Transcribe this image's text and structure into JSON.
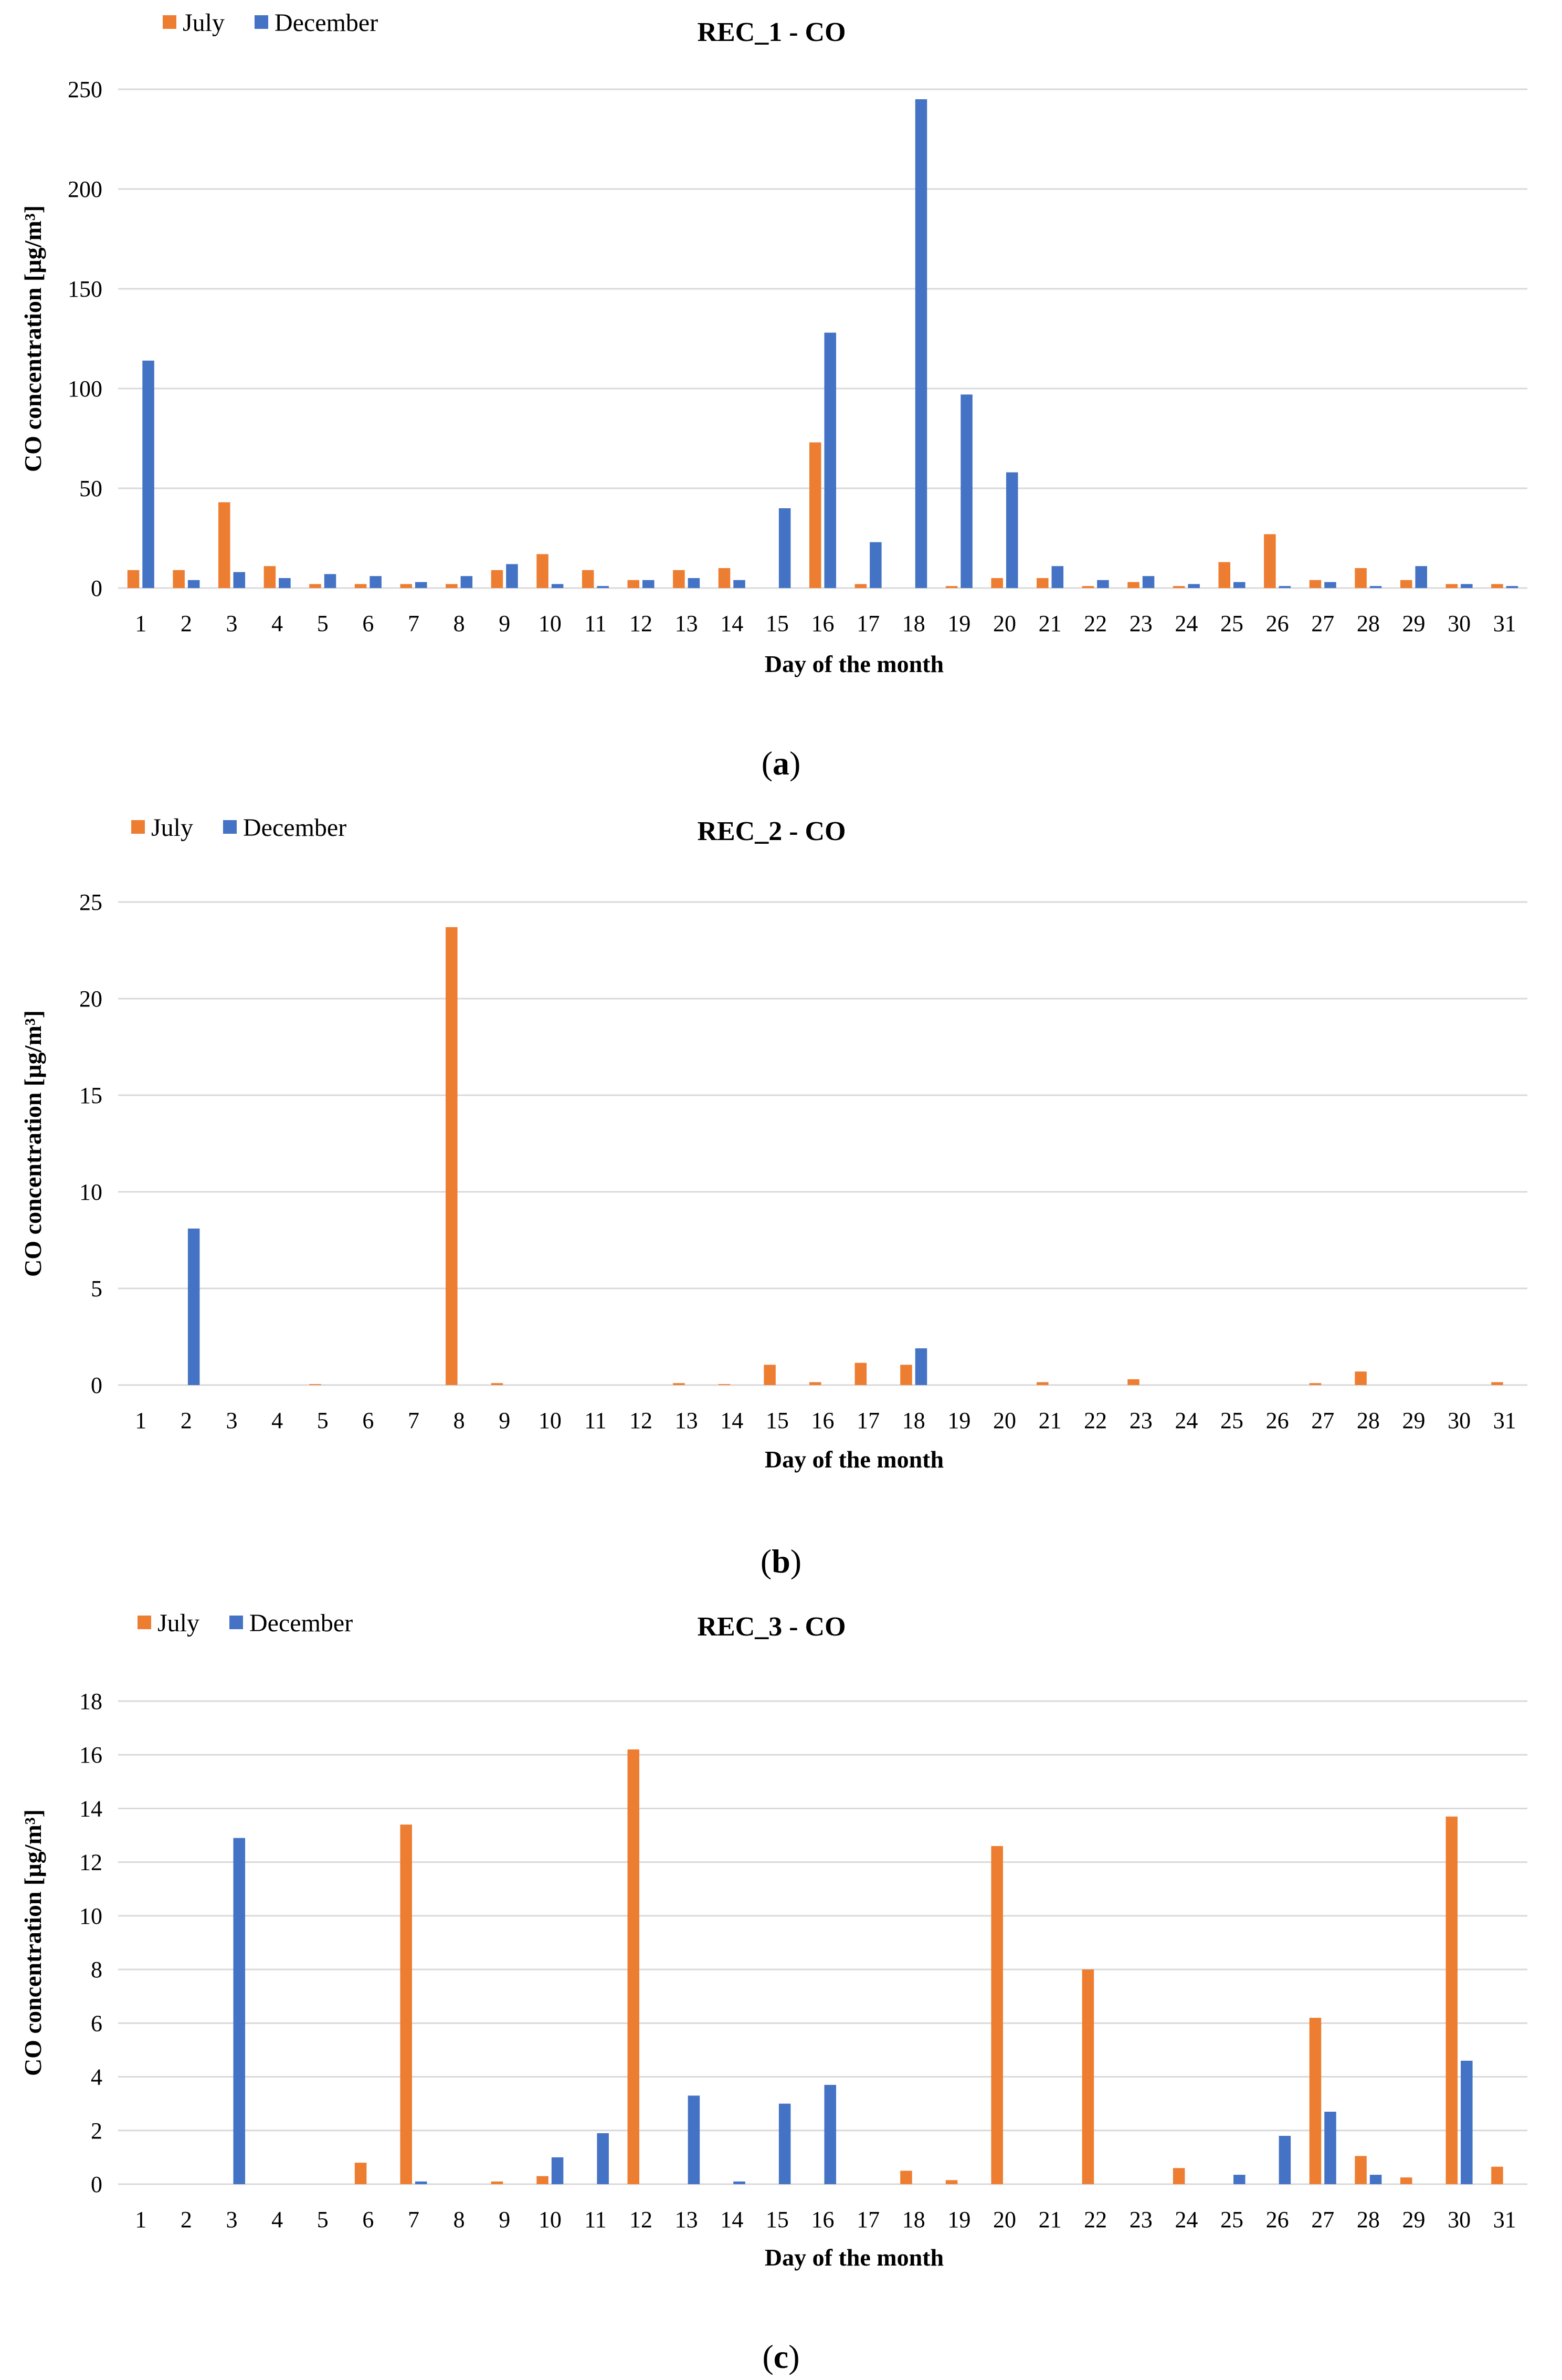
{
  "colors": {
    "july": "#ED7D31",
    "december": "#4472C4"
  },
  "chart_data": [
    {
      "type": "bar",
      "title": "REC_1 - CO",
      "xlabel": "Day of the month",
      "ylabel": "CO concentration [µg/m³]",
      "ylim": [
        0,
        250
      ],
      "yticks": [
        0,
        50,
        100,
        150,
        200,
        250
      ],
      "categories": [
        "1",
        "2",
        "3",
        "4",
        "5",
        "6",
        "7",
        "8",
        "9",
        "10",
        "11",
        "12",
        "13",
        "14",
        "15",
        "16",
        "17",
        "18",
        "19",
        "20",
        "21",
        "22",
        "23",
        "24",
        "25",
        "26",
        "27",
        "28",
        "29",
        "30",
        "31"
      ],
      "series": [
        {
          "name": "July",
          "values": [
            9,
            9,
            43,
            11,
            2,
            2,
            2,
            2,
            9,
            17,
            9,
            4,
            9,
            10,
            0,
            73,
            2,
            0,
            1,
            5,
            5,
            1,
            3,
            1,
            13,
            27,
            4,
            10,
            4,
            2,
            2
          ]
        },
        {
          "name": "December",
          "values": [
            114,
            4,
            8,
            5,
            7,
            6,
            3,
            6,
            12,
            2,
            1,
            4,
            5,
            4,
            40,
            128,
            23,
            245,
            97,
            58,
            11,
            4,
            6,
            2,
            3,
            1,
            3,
            1,
            11,
            2,
            1
          ]
        }
      ],
      "caption": "a"
    },
    {
      "type": "bar",
      "title": "REC_2 - CO",
      "xlabel": "Day of the month",
      "ylabel": "CO concentration [µg/m³]",
      "ylim": [
        0,
        25
      ],
      "yticks": [
        0,
        5,
        10,
        15,
        20,
        25
      ],
      "categories": [
        "1",
        "2",
        "3",
        "4",
        "5",
        "6",
        "7",
        "8",
        "9",
        "10",
        "11",
        "12",
        "13",
        "14",
        "15",
        "16",
        "17",
        "18",
        "19",
        "20",
        "21",
        "22",
        "23",
        "24",
        "25",
        "26",
        "27",
        "28",
        "29",
        "30",
        "31"
      ],
      "series": [
        {
          "name": "July",
          "values": [
            0,
            0,
            0,
            0,
            0.05,
            0,
            0,
            23.7,
            0.1,
            0,
            0,
            0,
            0.1,
            0.05,
            1.05,
            0.15,
            1.15,
            1.05,
            0,
            0,
            0.15,
            0,
            0.3,
            0,
            0,
            0,
            0.1,
            0.7,
            0,
            0,
            0.15
          ]
        },
        {
          "name": "December",
          "values": [
            0,
            8.1,
            0,
            0,
            0,
            0,
            0,
            0,
            0,
            0,
            0,
            0,
            0,
            0,
            0,
            0,
            0,
            1.9,
            0,
            0,
            0,
            0,
            0,
            0,
            0,
            0,
            0,
            0,
            0,
            0,
            0
          ]
        }
      ],
      "caption": "b"
    },
    {
      "type": "bar",
      "title": "REC_3 - CO",
      "xlabel": "Day of the month",
      "ylabel": "CO concentration [µg/m³]",
      "ylim": [
        0,
        18
      ],
      "yticks": [
        0,
        2,
        4,
        6,
        8,
        10,
        12,
        14,
        16,
        18
      ],
      "categories": [
        "1",
        "2",
        "3",
        "4",
        "5",
        "6",
        "7",
        "8",
        "9",
        "10",
        "11",
        "12",
        "13",
        "14",
        "15",
        "16",
        "17",
        "18",
        "19",
        "20",
        "21",
        "22",
        "23",
        "24",
        "25",
        "26",
        "27",
        "28",
        "29",
        "30",
        "31"
      ],
      "series": [
        {
          "name": "July",
          "values": [
            0,
            0,
            0,
            0,
            0,
            0.8,
            13.4,
            0,
            0.1,
            0.3,
            0,
            16.2,
            0,
            0,
            0,
            0,
            0,
            0.5,
            0.15,
            12.6,
            0,
            8.0,
            0,
            0.6,
            0,
            0,
            6.2,
            1.05,
            0.25,
            13.7,
            0.65
          ]
        },
        {
          "name": "December",
          "values": [
            0,
            0,
            12.9,
            0,
            0,
            0,
            0.1,
            0,
            0,
            1.0,
            1.9,
            0,
            3.3,
            0.1,
            3.0,
            3.7,
            0,
            0,
            0,
            0,
            0,
            0,
            0,
            0,
            0.35,
            1.8,
            2.7,
            0.35,
            0,
            4.6,
            0
          ]
        }
      ],
      "caption": "c"
    }
  ]
}
